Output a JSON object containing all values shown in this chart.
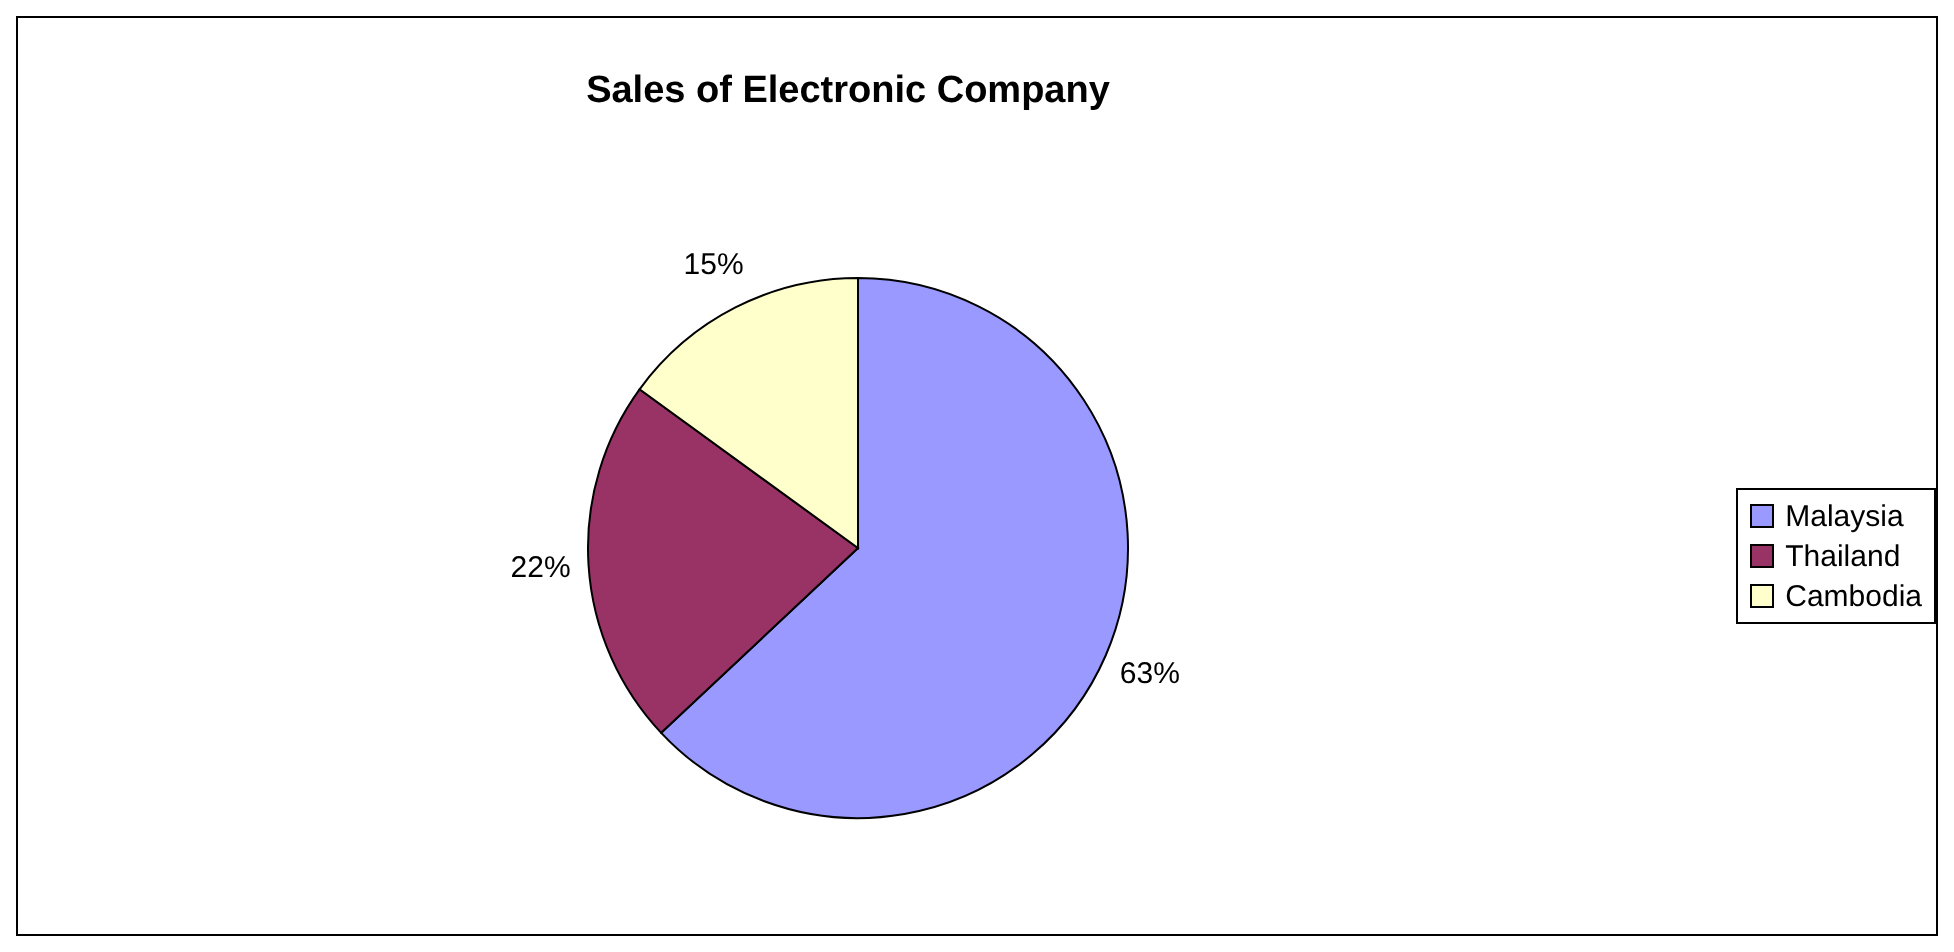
{
  "chart_data": {
    "type": "pie",
    "title": "Sales of Electronic Company",
    "categories": [
      "Malaysia",
      "Thailand",
      "Cambodia"
    ],
    "values": [
      63,
      22,
      15
    ],
    "colors": [
      "#9999ff",
      "#993366",
      "#ffffcc"
    ],
    "value_labels": [
      "63%",
      "22%",
      "15%"
    ],
    "legend": "right"
  }
}
